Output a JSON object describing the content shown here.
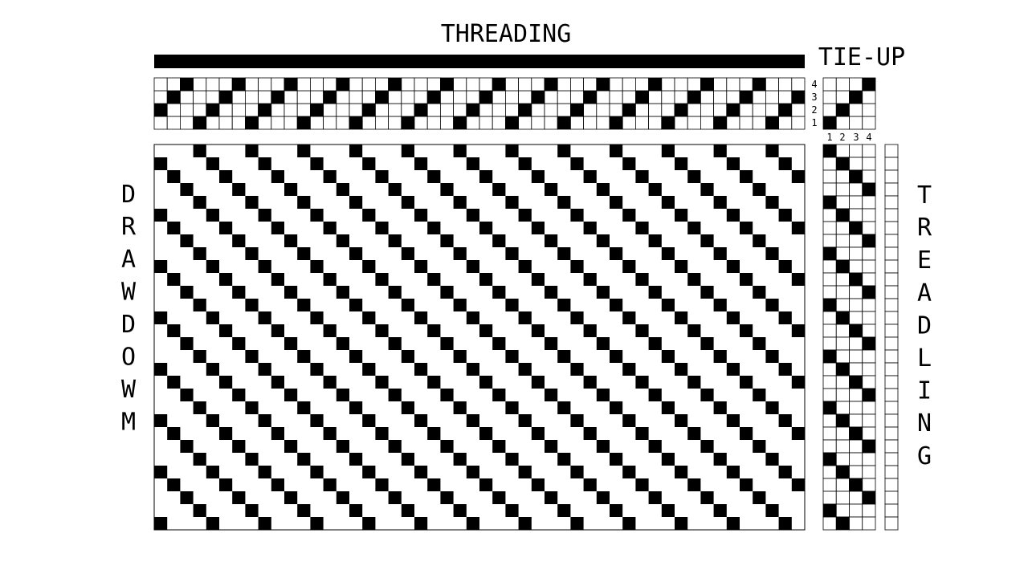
{
  "labels": {
    "threading": "THREADING",
    "tieup": "TIE-UP",
    "drawdown": "DRAWDOWM",
    "treadling": "TREADLING"
  },
  "shaft_numbers": [
    "4",
    "3",
    "2",
    "1"
  ],
  "treadle_numbers": [
    "1",
    "2",
    "3",
    "4"
  ],
  "draft": {
    "warp_ends": 50,
    "picks": 30,
    "shafts": 4,
    "treadles": 4,
    "threading_sequence": "straight draw 1-2-3-4 repeating, first end threaded on shaft 2",
    "tieup_raised": [
      [
        1,
        1
      ],
      [
        2,
        2
      ],
      [
        3,
        3
      ],
      [
        4,
        4
      ]
    ],
    "treadling_sequence": "straight 1-2-3-4 repeating",
    "colors": {
      "filled": "#000000",
      "empty": "#ffffff",
      "grid_line": "#000000"
    }
  }
}
